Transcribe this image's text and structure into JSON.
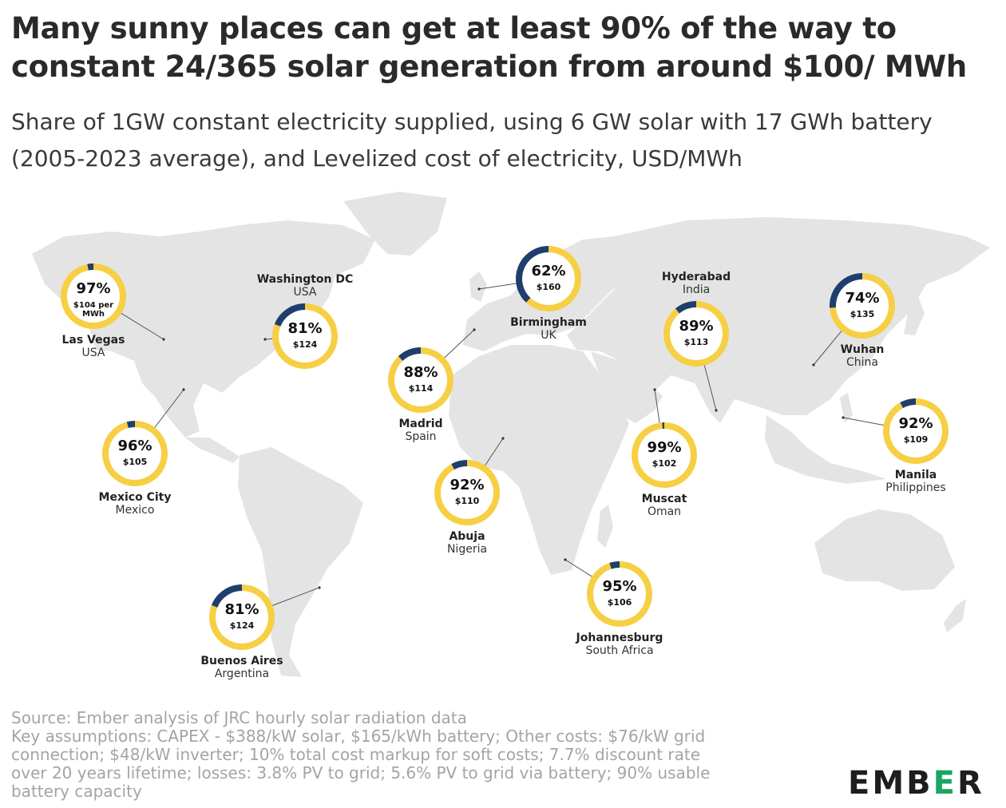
{
  "title": "Many sunny places can get at least 90% of the way to constant 24/365 solar generation from around $100/ MWh",
  "subtitle": "Share of 1GW constant electricity supplied, using 6 GW solar with 17 GWh battery (2005-2023 average), and Levelized cost of electricity, USD/MWh",
  "footer": {
    "source": "Source: Ember analysis of JRC hourly solar radiation data",
    "assumptions_lines": [
      "Key assumptions: CAPEX - $388/kW solar, $165/kWh battery; Other costs: $76/kW grid",
      "connection; $48/kW inverter; 10% total cost markup for soft costs; 7.7% discount rate",
      "over 20 years lifetime; losses: 3.8% PV to grid; 5.6% PV to grid via battery; 90% usable",
      "battery capacity"
    ]
  },
  "logo": {
    "part1": "EMB",
    "part2": "E",
    "part3": "R"
  },
  "colors": {
    "supplied": "#f6cf44",
    "gap": "#1e3f6e",
    "map": "#e4e4e4",
    "background": "#ffffff"
  },
  "chart_data": {
    "type": "donut-map",
    "title": "Many sunny places can get at least 90% of the way to constant 24/365 solar generation from around $100/ MWh",
    "measure": "Share of 1GW constant electricity supplied (%)",
    "cost_unit": "USD/MWh",
    "series": [
      {
        "city": "Las Vegas",
        "country": "USA",
        "share": 97,
        "cost_label": "$104 per MWh",
        "cost": 104
      },
      {
        "city": "Washington DC",
        "country": "USA",
        "share": 81,
        "cost_label": "$124",
        "cost": 124
      },
      {
        "city": "Mexico City",
        "country": "Mexico",
        "share": 96,
        "cost_label": "$105",
        "cost": 105
      },
      {
        "city": "Buenos Aires",
        "country": "Argentina",
        "share": 81,
        "cost_label": "$124",
        "cost": 124
      },
      {
        "city": "Birmingham",
        "country": "UK",
        "share": 62,
        "cost_label": "$160",
        "cost": 160
      },
      {
        "city": "Madrid",
        "country": "Spain",
        "share": 88,
        "cost_label": "$114",
        "cost": 114
      },
      {
        "city": "Abuja",
        "country": "Nigeria",
        "share": 92,
        "cost_label": "$110",
        "cost": 110
      },
      {
        "city": "Johannesburg",
        "country": "South Africa",
        "share": 95,
        "cost_label": "$106",
        "cost": 106
      },
      {
        "city": "Muscat",
        "country": "Oman",
        "share": 99,
        "cost_label": "$102",
        "cost": 102
      },
      {
        "city": "Hyderabad",
        "country": "India",
        "share": 89,
        "cost_label": "$113",
        "cost": 113
      },
      {
        "city": "Wuhan",
        "country": "China",
        "share": 74,
        "cost_label": "$135",
        "cost": 135
      },
      {
        "city": "Manila",
        "country": "Philippines",
        "share": 92,
        "cost_label": "$109",
        "cost": 109
      }
    ]
  }
}
